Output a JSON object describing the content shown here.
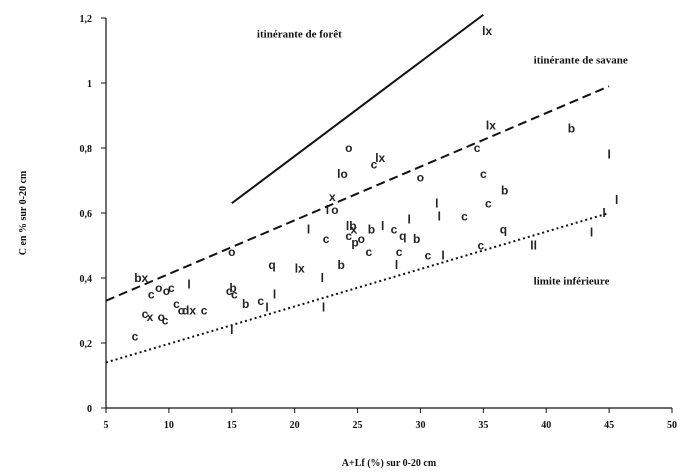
{
  "chart_data": {
    "type": "scatter",
    "xlabel": "A+Lf (%) sur 0-20 cm",
    "ylabel": "C en % sur 0-20 cm",
    "xlim": [
      5,
      50
    ],
    "ylim": [
      0,
      1.2
    ],
    "x_ticks": [
      5,
      10,
      15,
      20,
      25,
      30,
      35,
      40,
      45,
      50
    ],
    "x_tick_labels": [
      "5",
      "10",
      "15",
      "20",
      "25",
      "30",
      "35",
      "40",
      "45",
      "50"
    ],
    "y_ticks": [
      0,
      0.2,
      0.4,
      0.6,
      0.8,
      1,
      1.2
    ],
    "y_tick_labels": [
      "0",
      "0,2",
      "0,4",
      "0,6",
      "0,8",
      "1",
      "1,2"
    ],
    "grid": false,
    "lines": [
      {
        "style": "solid",
        "x": [
          15,
          35
        ],
        "y": [
          0.63,
          1.21
        ]
      },
      {
        "style": "dashed",
        "x": [
          5,
          45
        ],
        "y": [
          0.33,
          0.99
        ]
      },
      {
        "style": "dotted",
        "x": [
          5,
          45
        ],
        "y": [
          0.14,
          0.6
        ]
      }
    ],
    "annotations": [
      {
        "text": "itinérante de forêt",
        "x": 17,
        "y": 1.14
      },
      {
        "text": "itinérante de savane",
        "x": 39,
        "y": 1.06
      },
      {
        "text": "limite inférieure",
        "x": 39,
        "y": 0.38
      }
    ],
    "points": [
      {
        "label": "bx",
        "x": 7.8,
        "y": 0.4
      },
      {
        "label": "c",
        "x": 7.3,
        "y": 0.22
      },
      {
        "label": "c",
        "x": 8.1,
        "y": 0.29
      },
      {
        "label": "x",
        "x": 8.5,
        "y": 0.28
      },
      {
        "label": "c",
        "x": 8.6,
        "y": 0.35
      },
      {
        "label": "o",
        "x": 9.2,
        "y": 0.37
      },
      {
        "label": "o",
        "x": 9.4,
        "y": 0.28
      },
      {
        "label": "c",
        "x": 9.7,
        "y": 0.27
      },
      {
        "label": "o",
        "x": 9.8,
        "y": 0.36
      },
      {
        "label": "c",
        "x": 10.2,
        "y": 0.37
      },
      {
        "label": "c",
        "x": 10.6,
        "y": 0.32
      },
      {
        "label": "o",
        "x": 11.0,
        "y": 0.3
      },
      {
        "label": "dx",
        "x": 11.6,
        "y": 0.3
      },
      {
        "label": "l",
        "x": 11.6,
        "y": 0.38
      },
      {
        "label": "c",
        "x": 12.8,
        "y": 0.3
      },
      {
        "label": "c",
        "x": 14.8,
        "y": 0.36
      },
      {
        "label": "b",
        "x": 15.1,
        "y": 0.37
      },
      {
        "label": "c",
        "x": 15.2,
        "y": 0.35
      },
      {
        "label": "o",
        "x": 15.0,
        "y": 0.48
      },
      {
        "label": "b",
        "x": 16.1,
        "y": 0.32
      },
      {
        "label": "c",
        "x": 17.3,
        "y": 0.33
      },
      {
        "label": "l",
        "x": 17.8,
        "y": 0.31
      },
      {
        "label": "l",
        "x": 18.4,
        "y": 0.35
      },
      {
        "label": "q",
        "x": 18.2,
        "y": 0.44
      },
      {
        "label": "l",
        "x": 15.0,
        "y": 0.24
      },
      {
        "label": "lx",
        "x": 20.4,
        "y": 0.43
      },
      {
        "label": "l",
        "x": 21.1,
        "y": 0.55
      },
      {
        "label": "l",
        "x": 22.2,
        "y": 0.4
      },
      {
        "label": "l",
        "x": 22.3,
        "y": 0.31
      },
      {
        "label": "c",
        "x": 22.5,
        "y": 0.52
      },
      {
        "label": "x",
        "x": 23.0,
        "y": 0.65
      },
      {
        "label": "o",
        "x": 23.2,
        "y": 0.61
      },
      {
        "label": "l",
        "x": 22.6,
        "y": 0.61
      },
      {
        "label": "b",
        "x": 23.7,
        "y": 0.44
      },
      {
        "label": "lo",
        "x": 23.8,
        "y": 0.72
      },
      {
        "label": "o",
        "x": 24.3,
        "y": 0.8
      },
      {
        "label": "lb",
        "x": 24.5,
        "y": 0.56
      },
      {
        "label": "c",
        "x": 24.3,
        "y": 0.53
      },
      {
        "label": "x",
        "x": 24.7,
        "y": 0.55
      },
      {
        "label": "p",
        "x": 24.8,
        "y": 0.51
      },
      {
        "label": "o",
        "x": 25.3,
        "y": 0.52
      },
      {
        "label": "c",
        "x": 25.9,
        "y": 0.48
      },
      {
        "label": "b",
        "x": 26.1,
        "y": 0.55
      },
      {
        "label": "c",
        "x": 26.3,
        "y": 0.75
      },
      {
        "label": "lx",
        "x": 26.8,
        "y": 0.77
      },
      {
        "label": "l",
        "x": 27.0,
        "y": 0.56
      },
      {
        "label": "c",
        "x": 27.9,
        "y": 0.55
      },
      {
        "label": "l",
        "x": 28.1,
        "y": 0.44
      },
      {
        "label": "c",
        "x": 28.3,
        "y": 0.48
      },
      {
        "label": "q",
        "x": 28.6,
        "y": 0.53
      },
      {
        "label": "l",
        "x": 29.1,
        "y": 0.58
      },
      {
        "label": "b",
        "x": 29.7,
        "y": 0.52
      },
      {
        "label": "c",
        "x": 30.6,
        "y": 0.47
      },
      {
        "label": "l",
        "x": 31.3,
        "y": 0.63
      },
      {
        "label": "l",
        "x": 31.5,
        "y": 0.59
      },
      {
        "label": "l",
        "x": 31.8,
        "y": 0.47
      },
      {
        "label": "o",
        "x": 30.0,
        "y": 0.71
      },
      {
        "label": "c",
        "x": 33.5,
        "y": 0.59
      },
      {
        "label": "c",
        "x": 34.5,
        "y": 0.8
      },
      {
        "label": "c",
        "x": 34.8,
        "y": 0.5
      },
      {
        "label": "c",
        "x": 35.0,
        "y": 0.72
      },
      {
        "label": "lx",
        "x": 35.6,
        "y": 0.87
      },
      {
        "label": "c",
        "x": 35.4,
        "y": 0.63
      },
      {
        "label": "b",
        "x": 36.7,
        "y": 0.67
      },
      {
        "label": "q",
        "x": 36.6,
        "y": 0.55
      },
      {
        "label": "ll",
        "x": 39.0,
        "y": 0.5
      },
      {
        "label": "b",
        "x": 42.0,
        "y": 0.86
      },
      {
        "label": "l",
        "x": 43.6,
        "y": 0.54
      },
      {
        "label": "l",
        "x": 44.6,
        "y": 0.6
      },
      {
        "label": "l",
        "x": 45.0,
        "y": 0.78
      },
      {
        "label": "l",
        "x": 45.6,
        "y": 0.64
      },
      {
        "label": "lx",
        "x": 35.3,
        "y": 1.16
      }
    ]
  }
}
